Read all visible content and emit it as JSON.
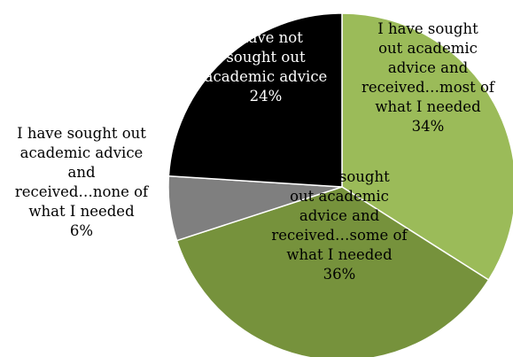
{
  "chart_data": {
    "type": "pie",
    "title": "",
    "start_angle_deg": 0,
    "direction": "clockwise",
    "slices": [
      {
        "label_lines": [
          "I have sought",
          "out academic",
          "advice and",
          "received…most of",
          "what I needed",
          "34%"
        ],
        "value": 34,
        "color": "#9bbb59",
        "text_color": "#000000"
      },
      {
        "label_lines": [
          "I have sought",
          "out academic",
          "advice and",
          "received…some of",
          "what I needed",
          "36%"
        ],
        "value": 36,
        "color": "#76923c",
        "text_color": "#000000"
      },
      {
        "label_lines": [
          "I have sought out",
          "academic advice",
          "and",
          "received…none of",
          "what I needed",
          "6%"
        ],
        "value": 6,
        "color": "#7f7f7f",
        "text_color": "#000000"
      },
      {
        "label_lines": [
          "I have not",
          "sought out",
          "academic advice",
          "24%"
        ],
        "value": 24,
        "color": "#000000",
        "text_color": "#ffffff"
      }
    ]
  }
}
